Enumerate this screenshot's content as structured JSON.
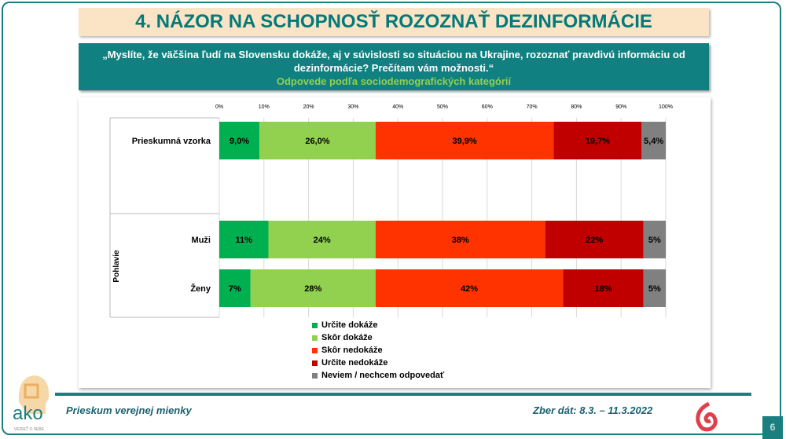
{
  "title": "4. NÁZOR NA SCHOPNOSŤ ROZOZNAŤ DEZINFORMÁCIE",
  "question": "„Myslíte, že väčšina ľudí na Slovensku dokáže, aj v súvislosti so situáciou na Ukrajine, rozoznať pravdivú informáciu od dezinformácie? Prečítam vám možnosti.“",
  "subtitle": "Odpovede podľa sociodemografických kategórií",
  "footer": {
    "left": "Prieskum verejnej mienky",
    "right": "Zber dát: 8.3. – 11.3.2022",
    "page": "6",
    "logo": "ako",
    "logo_tagline": "VEDIEŤ O SEBE"
  },
  "chart_data": {
    "type": "stacked-bar-horizontal",
    "xlim": [
      0,
      100
    ],
    "ticks": [
      "0%",
      "10%",
      "20%",
      "30%",
      "40%",
      "50%",
      "60%",
      "70%",
      "80%",
      "90%",
      "100%"
    ],
    "group_label": "Pohlavie",
    "categories": [
      "Prieskumná vzorka",
      "Muži",
      "Ženy"
    ],
    "series": [
      {
        "name": "Určite dokáže",
        "color": "#00b050",
        "values": [
          9.0,
          11,
          7
        ],
        "labels": [
          "9,0%",
          "11%",
          "7%"
        ]
      },
      {
        "name": "Skôr dokáže",
        "color": "#92d050",
        "values": [
          26.0,
          24,
          28
        ],
        "labels": [
          "26,0%",
          "24%",
          "28%"
        ]
      },
      {
        "name": "Skôr nedokáže",
        "color": "#ff3300",
        "values": [
          39.9,
          38,
          42
        ],
        "labels": [
          "39,9%",
          "38%",
          "42%"
        ]
      },
      {
        "name": "Určite nedokáže",
        "color": "#c00000",
        "values": [
          19.7,
          22,
          18
        ],
        "labels": [
          "19,7%",
          "22%",
          "18%"
        ]
      },
      {
        "name": "Neviem / nechcem odpovedať",
        "color": "#808080",
        "values": [
          5.4,
          5,
          5
        ],
        "labels": [
          "5,4%",
          "5%",
          "5%"
        ]
      }
    ],
    "grid": true,
    "legend": "bottom"
  }
}
